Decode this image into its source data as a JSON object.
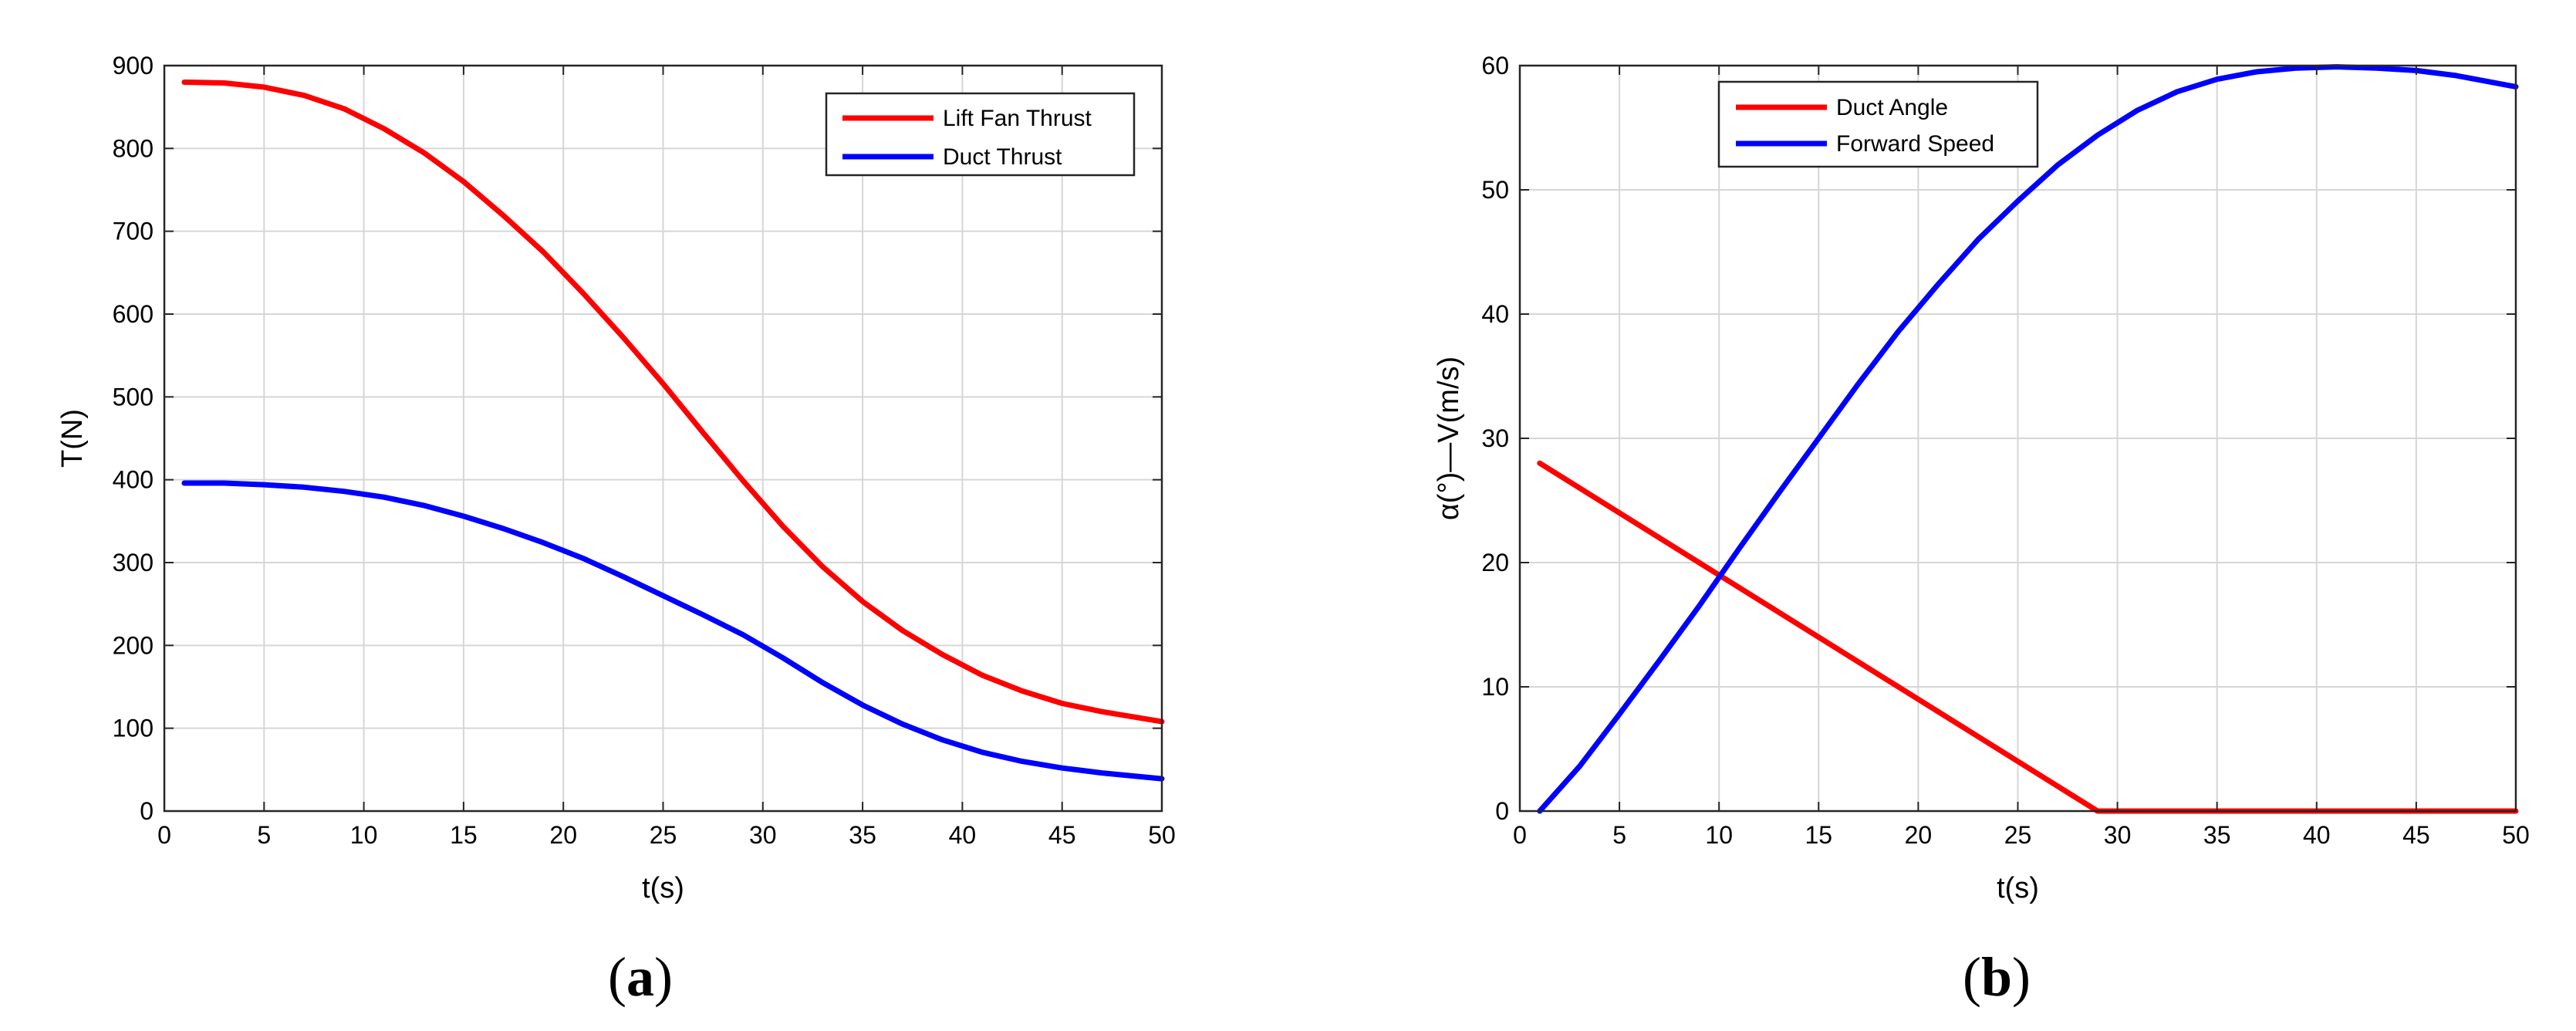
{
  "chart_data": [
    {
      "type": "line",
      "panel_caption": {
        "open": "(",
        "letter": "a",
        "close": ")"
      },
      "xlabel": "t(s)",
      "ylabel": "T(N)",
      "xlim": [
        0,
        50
      ],
      "ylim": [
        0,
        900
      ],
      "xticks": [
        0,
        5,
        10,
        15,
        20,
        25,
        30,
        35,
        40,
        45,
        50
      ],
      "yticks": [
        0,
        100,
        200,
        300,
        400,
        500,
        600,
        700,
        800,
        900
      ],
      "grid": true,
      "legend_position": "top-right",
      "series": [
        {
          "name": "Lift Fan Thrust",
          "color": "#ff0000",
          "x": [
            1,
            3,
            5,
            7,
            9,
            11,
            13,
            15,
            17,
            19,
            21,
            23,
            25,
            27,
            29,
            31,
            33,
            35,
            37,
            39,
            41,
            43,
            45,
            47,
            50
          ],
          "y": [
            880,
            879,
            874,
            864,
            848,
            824,
            795,
            760,
            719,
            675,
            625,
            572,
            516,
            457,
            399,
            344,
            295,
            253,
            218,
            189,
            164,
            145,
            130,
            120,
            108
          ]
        },
        {
          "name": "Duct Thrust",
          "color": "#0000ff",
          "x": [
            1,
            3,
            5,
            7,
            9,
            11,
            13,
            15,
            17,
            19,
            21,
            23,
            25,
            27,
            29,
            31,
            33,
            35,
            37,
            39,
            41,
            43,
            45,
            47,
            50
          ],
          "y": [
            396,
            396,
            394,
            391,
            386,
            379,
            369,
            356,
            341,
            324,
            305,
            283,
            260,
            237,
            213,
            185,
            155,
            128,
            105,
            86,
            71,
            60,
            52,
            46,
            39
          ]
        }
      ]
    },
    {
      "type": "line",
      "panel_caption": {
        "open": "(",
        "letter": "b",
        "close": ")"
      },
      "xlabel": "t(s)",
      "ylabel": "α(°)—V(m/s)",
      "xlim": [
        0,
        50
      ],
      "ylim": [
        0,
        60
      ],
      "xticks": [
        0,
        5,
        10,
        15,
        20,
        25,
        30,
        35,
        40,
        45,
        50
      ],
      "yticks": [
        0,
        10,
        20,
        30,
        40,
        50,
        60
      ],
      "grid": true,
      "legend_position": "top-center",
      "series": [
        {
          "name": "Duct Angle",
          "color": "#ff0000",
          "x": [
            1,
            29,
            50
          ],
          "y": [
            28,
            0,
            0
          ]
        },
        {
          "name": "Forward Speed",
          "color": "#0000ff",
          "x": [
            1,
            3,
            5,
            7,
            9,
            11,
            13,
            15,
            17,
            19,
            21,
            23,
            25,
            27,
            29,
            31,
            33,
            35,
            37,
            39,
            41,
            43,
            45,
            47,
            50
          ],
          "y": [
            0,
            3.6,
            7.8,
            12.1,
            16.5,
            21.1,
            25.6,
            30.0,
            34.4,
            38.6,
            42.4,
            46.0,
            49.1,
            52.0,
            54.4,
            56.4,
            57.9,
            58.9,
            59.5,
            59.8,
            59.9,
            59.8,
            59.6,
            59.2,
            58.3
          ]
        }
      ]
    }
  ]
}
